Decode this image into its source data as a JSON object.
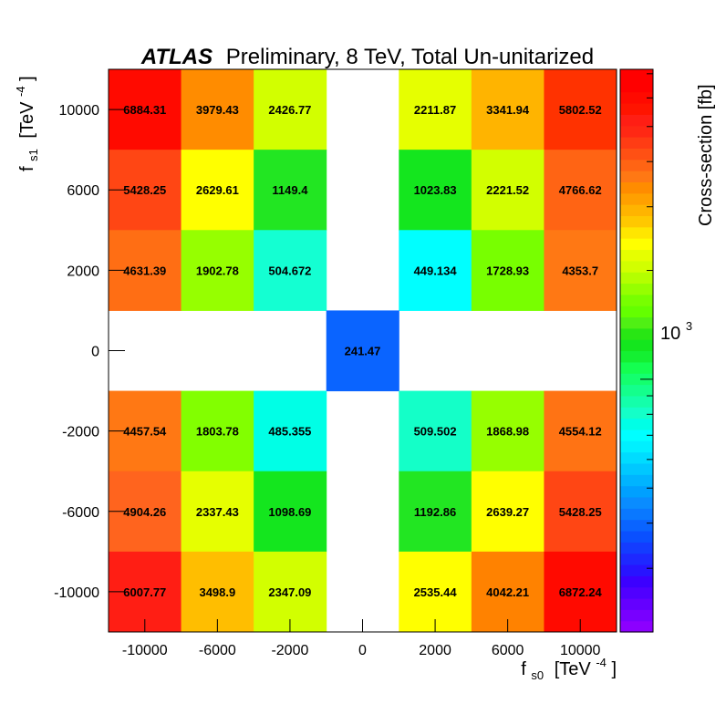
{
  "chart_data": {
    "type": "heatmap",
    "title": {
      "experiment": "ATLAS",
      "rest": "Preliminary, 8 TeV, Total Un-unitarized"
    },
    "xlabel": {
      "main": "f",
      "sub": "s0",
      "unit": "[TeV",
      "exp": "-4",
      "close": "]"
    },
    "ylabel": {
      "main": "f",
      "sub": "s1",
      "unit": "[TeV",
      "exp": "-4",
      "close": "]"
    },
    "zlabel": "Cross-section [fb]",
    "z_scale": "log",
    "z_tick_label": {
      "base": "10",
      "exp": "3"
    },
    "x_categories": [
      "-10000",
      "-6000",
      "-2000",
      "0",
      "2000",
      "6000",
      "10000"
    ],
    "y_categories": [
      "10000",
      "6000",
      "2000",
      "0",
      "-2000",
      "-6000",
      "-10000"
    ],
    "cells": [
      [
        "6884.31",
        "3979.43",
        "2426.77",
        null,
        "2211.87",
        "3341.94",
        "5802.52"
      ],
      [
        "5428.25",
        "2629.61",
        "1149.4",
        null,
        "1023.83",
        "2221.52",
        "4766.62"
      ],
      [
        "4631.39",
        "1902.78",
        "504.672",
        null,
        "449.134",
        "1728.93",
        "4353.7"
      ],
      [
        null,
        null,
        null,
        "241.47",
        null,
        null,
        null
      ],
      [
        "4457.54",
        "1803.78",
        "485.355",
        null,
        "509.502",
        "1868.98",
        "4554.12"
      ],
      [
        "4904.26",
        "2337.43",
        "1098.69",
        null,
        "1192.86",
        "2639.27",
        "5428.25"
      ],
      [
        "6007.77",
        "3498.9",
        "2347.09",
        null,
        "2535.44",
        "4042.21",
        "6872.24"
      ]
    ],
    "cell_colors": [
      [
        "#ff0a00",
        "#ff8c00",
        "#d2ff00",
        null,
        "#e6ff00",
        "#ffb400",
        "#ff3200"
      ],
      [
        "#ff4614",
        "#ffff00",
        "#22e622",
        null,
        "#14e61e",
        "#d2ff00",
        "#ff6414"
      ],
      [
        "#ff6e14",
        "#96ff00",
        "#14ffd2",
        null,
        "#00ffff",
        "#78ff00",
        "#ff7814"
      ],
      [
        null,
        null,
        null,
        "#0a64ff",
        null,
        null,
        null
      ],
      [
        "#ff7814",
        "#82ff00",
        "#00ffe6",
        null,
        "#14ffc8",
        "#96ff00",
        "#ff7314"
      ],
      [
        "#ff641e",
        "#e6ff00",
        "#14e61e",
        null,
        "#22e622",
        "#ffff00",
        "#ff4614"
      ],
      [
        "#ff1e14",
        "#ffbe00",
        "#d2ff00",
        null,
        "#ffff00",
        "#ff8200",
        "#ff0a00"
      ]
    ],
    "palette_colors": [
      "#8c00ff",
      "#7800ff",
      "#6400ff",
      "#5000ff",
      "#3c00ff",
      "#2814ff",
      "#1e28ff",
      "#143cff",
      "#0a50ff",
      "#0a64ff",
      "#0a78ff",
      "#0a8cff",
      "#00a0ff",
      "#00b4ff",
      "#00c8ff",
      "#00dcff",
      "#00f0ff",
      "#00ffff",
      "#00ffe6",
      "#14ffc8",
      "#14ffaa",
      "#14ff8c",
      "#14ff6e",
      "#14ff50",
      "#14f032",
      "#14e61e",
      "#28e614",
      "#50f014",
      "#64ff00",
      "#78ff00",
      "#96ff00",
      "#b4ff00",
      "#d2ff00",
      "#e6ff00",
      "#ffff00",
      "#ffe600",
      "#ffc800",
      "#ffb400",
      "#ffa000",
      "#ff8c00",
      "#ff7814",
      "#ff6414",
      "#ff5014",
      "#ff3c14",
      "#ff2814",
      "#ff1e14",
      "#ff1400",
      "#ff0a00",
      "#ff0000",
      "#ff0000"
    ],
    "grid": false,
    "legend": "right color bar"
  }
}
